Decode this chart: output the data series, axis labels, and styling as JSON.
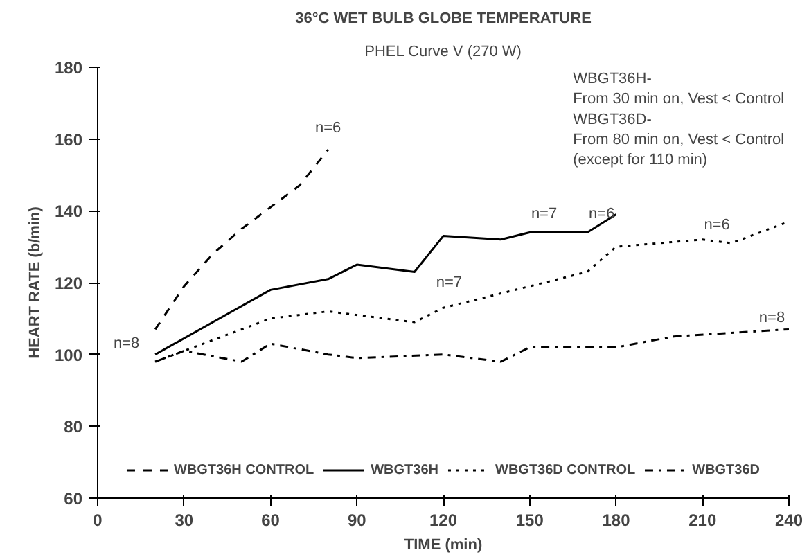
{
  "chart_data": {
    "type": "line",
    "title": "36°C WET BULB GLOBE TEMPERATURE",
    "subtitle": "PHEL Curve V (270 W)",
    "xlabel": "TIME (min)",
    "ylabel": "HEART RATE (b/min)",
    "xlim": [
      0,
      240
    ],
    "xticks": [
      0,
      30,
      60,
      90,
      120,
      150,
      180,
      210,
      240
    ],
    "ylim": [
      60,
      180
    ],
    "yticks": [
      60,
      80,
      100,
      120,
      140,
      160,
      180
    ],
    "grid": false,
    "legend": "bottom",
    "marker": "none",
    "series": [
      {
        "name": "WBGT36H CONTROL",
        "color": "#000000",
        "line_style": "dashed",
        "x": [
          20,
          30,
          40,
          50,
          60,
          70,
          80
        ],
        "values": [
          107,
          119,
          128,
          135,
          141,
          147,
          157
        ]
      },
      {
        "name": "WBGT36H",
        "color": "#000000",
        "line_style": "solid",
        "x": [
          20,
          40,
          60,
          80,
          90,
          110,
          120,
          140,
          150,
          170,
          180
        ],
        "values": [
          100,
          109,
          118,
          121,
          125,
          123,
          133,
          132,
          134,
          134,
          139
        ]
      },
      {
        "name": "WBGT36D CONTROL",
        "color": "#000000",
        "line_style": "dotted",
        "x": [
          20,
          60,
          80,
          110,
          120,
          140,
          150,
          170,
          180,
          210,
          220,
          240
        ],
        "values": [
          98,
          110,
          112,
          109,
          113,
          117,
          119,
          123,
          130,
          132,
          131,
          137
        ]
      },
      {
        "name": "WBGT36D",
        "color": "#000000",
        "line_style": "dashdot",
        "x": [
          20,
          30,
          50,
          60,
          80,
          90,
          120,
          140,
          150,
          180,
          200,
          240
        ],
        "values": [
          98,
          101,
          98,
          103,
          100,
          99,
          100,
          98,
          102,
          102,
          105,
          107
        ]
      }
    ],
    "annotations": [
      "n=8",
      "n=6",
      "n=7",
      "n=6",
      "n=7",
      "n=6",
      "n=8",
      "WBGT36H-\nFrom 30 min on, Vest < Control",
      "WBGT36D-\nFrom 80 min on, Vest < Control\n(except for 110 min)"
    ]
  }
}
